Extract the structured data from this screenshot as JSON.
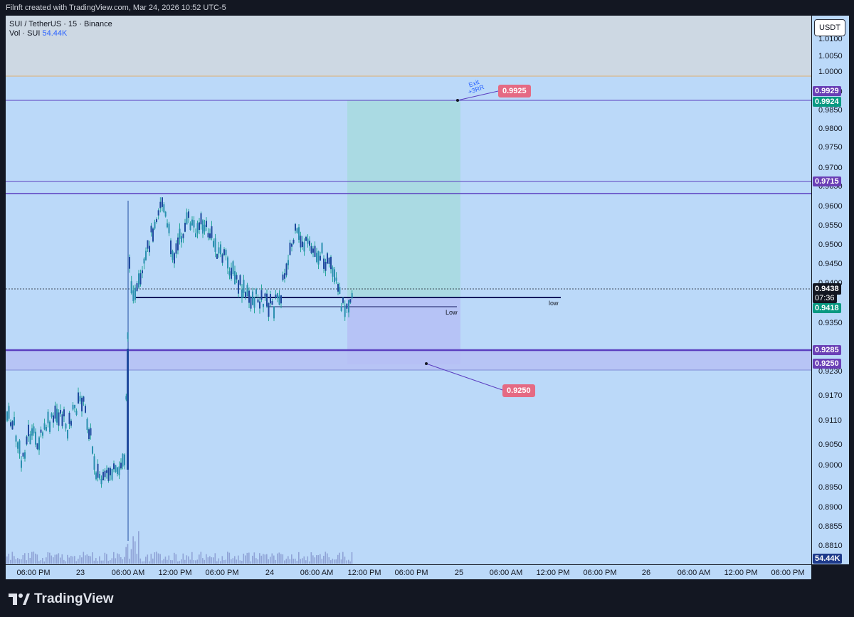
{
  "header": {
    "caption": "Filnft created with TradingView.com, Mar 24, 2026 10:52 UTC-5"
  },
  "legend": {
    "symbol_line": "SUI / TetherUS · 15 · Binance",
    "vol_label": "Vol · SUI",
    "vol_value": "54.44K"
  },
  "currency_button": "USDT",
  "price_axis": {
    "ticks": [
      "1.0100",
      "1.0050",
      "1.0000",
      "0.9900",
      "0.9850",
      "0.9800",
      "0.9750",
      "0.9700",
      "0.9650",
      "0.9600",
      "0.9550",
      "0.9500",
      "0.9450",
      "0.9400",
      "0.9350",
      "0.9230",
      "0.9170",
      "0.9110",
      "0.9050",
      "0.9000",
      "0.8950",
      "0.8900",
      "0.8855",
      "0.8810"
    ]
  },
  "price_tags": {
    "exit_top": "0.9929",
    "exit_green": "0.9924",
    "resistance": "0.9715",
    "last_price": "0.9438",
    "countdown": "07:36",
    "low_green": "0.9418",
    "support": "0.9285",
    "stop": "0.9250",
    "volume": "54.44K"
  },
  "time_axis": [
    "06:00 PM",
    "23",
    "06:00 AM",
    "12:00 PM",
    "06:00 PM",
    "24",
    "06:00 AM",
    "12:00 PM",
    "06:00 PM",
    "25",
    "06:00 AM",
    "12:00 PM",
    "06:00 PM",
    "26",
    "06:00 AM",
    "12:00 PM",
    "06:00 PM"
  ],
  "annotations": {
    "target_callout": "0.9925",
    "stop_callout": "0.9250",
    "exit_note_1": "Exit",
    "exit_note_2": "+3RR",
    "low_label_1": "Low",
    "low_label_2": "low"
  },
  "colors": {
    "background": "#bbd9f9",
    "candle": "#1f4a9e",
    "wick": "#26a69a",
    "level_line": "#5b3ec0",
    "target_zone": "#a8d9e0",
    "stop_zone": "#b6c0f5",
    "callout": "#e56a83",
    "tag_purple": "#6a3fb5",
    "tag_green": "#089981"
  },
  "brand": "TradingView"
}
